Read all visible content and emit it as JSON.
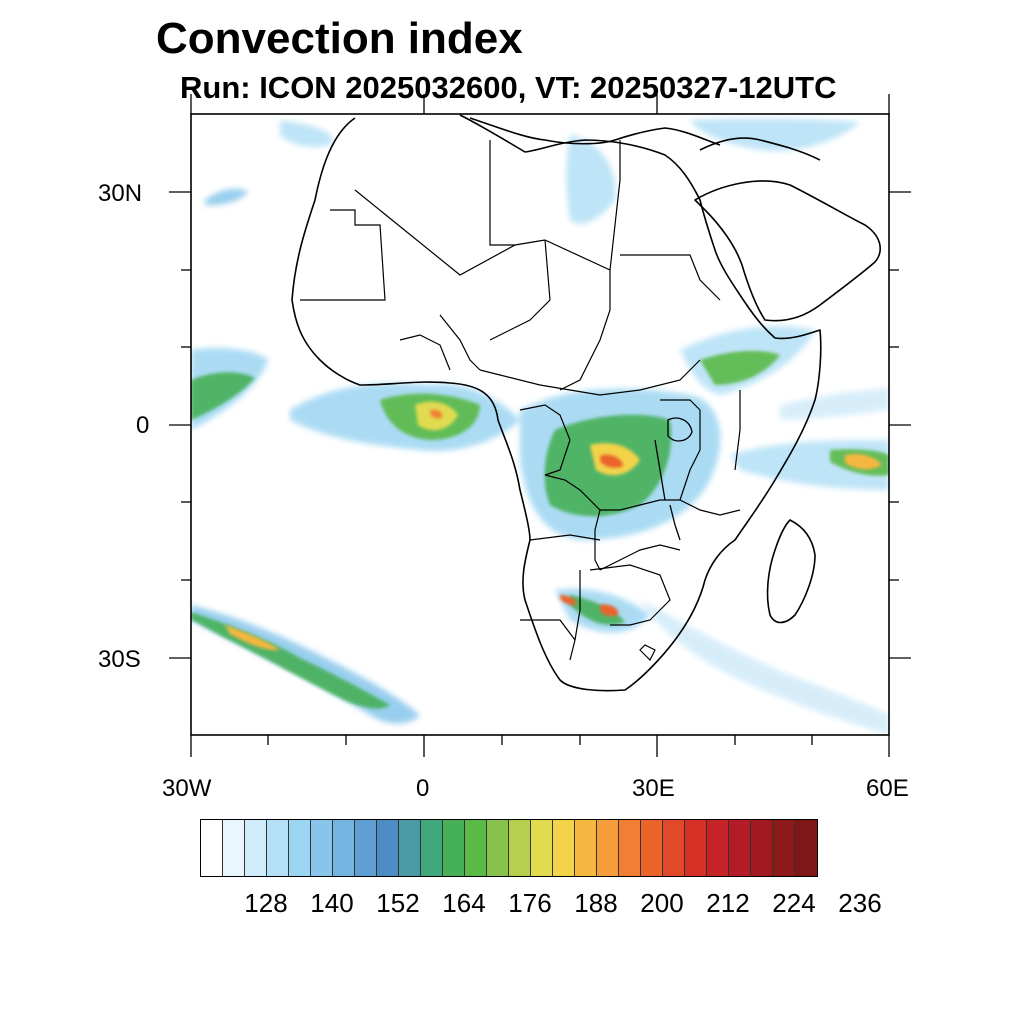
{
  "title": "Convection index",
  "subtitle": "Run: ICON 2025032600,  VT: 20250327-12UTC",
  "axes": {
    "y_labels": [
      "30N",
      "0",
      "30S"
    ],
    "x_labels": [
      "30W",
      "0",
      "30E",
      "60E"
    ]
  },
  "colorbar": {
    "labels": [
      "128",
      "140",
      "152",
      "164",
      "176",
      "188",
      "200",
      "212",
      "224",
      "236"
    ],
    "colors": [
      "#ffffff",
      "#eaf6fd",
      "#d0ebf9",
      "#b3e0f6",
      "#9cd5f2",
      "#87c6ea",
      "#74b5e1",
      "#5f9fd2",
      "#4d8cc4",
      "#4a9aa6",
      "#3fa77c",
      "#46b059",
      "#5ab947",
      "#87c24d",
      "#b7cf4f",
      "#e0db4f",
      "#f3d449",
      "#f6b741",
      "#f59d3b",
      "#f07f33",
      "#eb622b",
      "#e14a28",
      "#d73027",
      "#c62329",
      "#b31c27",
      "#a11a22",
      "#8c1a1a",
      "#7e1717"
    ]
  },
  "map": {
    "region": "Africa",
    "lon_range": [
      -30,
      60
    ],
    "lat_range": [
      -40,
      40
    ],
    "variable": "Convection index"
  }
}
